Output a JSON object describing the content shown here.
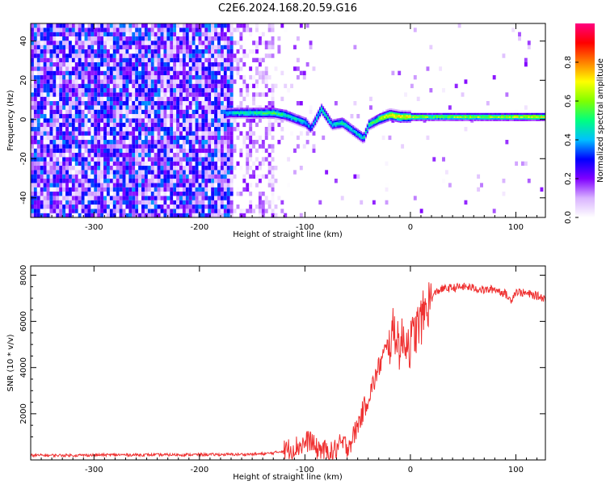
{
  "figure": {
    "title": "C2E6.2024.168.20.59.G16"
  },
  "chart_data": [
    {
      "type": "heatmap",
      "title": "C2E6.2024.168.20.59.G16",
      "xlabel": "Height of straight line (km)",
      "ylabel": "Frequency (Hz)",
      "xlim": [
        -360,
        128
      ],
      "ylim": [
        -50,
        49
      ],
      "xticks": [
        -300,
        -200,
        -100,
        0,
        100
      ],
      "yticks": [
        -40,
        -20,
        0,
        20,
        40
      ],
      "colorbar": {
        "label": "Normalized spectral amplitude",
        "range": [
          0.0,
          1.0
        ],
        "ticks": [
          0.0,
          0.2,
          0.4,
          0.6,
          0.8
        ],
        "colormap": [
          "#ffffff",
          "#d9b3ff",
          "#8000ff",
          "#0000ff",
          "#00c0ff",
          "#00ff80",
          "#80ff00",
          "#ffff00",
          "#ff8000",
          "#ff0000",
          "#ff0080"
        ]
      },
      "signal_track": {
        "x": [
          -360,
          -250,
          -170,
          -150,
          -130,
          -120,
          -110,
          -100,
          -95,
          -85,
          -75,
          -65,
          -55,
          -45,
          -40,
          -30,
          -20,
          -10,
          0,
          20,
          50,
          80,
          100,
          128
        ],
        "frequency": [
          0,
          0,
          3,
          3,
          3,
          2,
          0,
          -2,
          -5,
          5,
          -3,
          -2,
          -6,
          -10,
          -3,
          0,
          2,
          1,
          1,
          1,
          1,
          1,
          1,
          1
        ],
        "amplitude": [
          0.2,
          0.3,
          0.5,
          0.55,
          0.6,
          0.55,
          0.5,
          0.5,
          0.4,
          0.55,
          0.5,
          0.55,
          0.5,
          0.5,
          0.55,
          0.7,
          0.8,
          0.85,
          0.75,
          0.65,
          0.7,
          0.7,
          0.75,
          0.75
        ]
      },
      "grid": false
    },
    {
      "type": "line",
      "xlabel": "Height of straight line (km)",
      "ylabel": "SNR (10 * v/v)",
      "xlim": [
        -360,
        128
      ],
      "ylim": [
        0,
        8400
      ],
      "xticks": [
        -300,
        -200,
        -100,
        0,
        100
      ],
      "yticks": [
        2000,
        4000,
        6000,
        8000
      ],
      "color": "#ef3030",
      "series": [
        {
          "x": [
            -360,
            -320,
            -280,
            -240,
            -200,
            -160,
            -140,
            -130,
            -120,
            -110,
            -100,
            -95,
            -90,
            -85,
            -80,
            -75,
            -70,
            -65,
            -60,
            -55,
            -50,
            -45,
            -40,
            -35,
            -30,
            -25,
            -20,
            -15,
            -10,
            -5,
            0,
            5,
            10,
            15,
            20,
            25,
            30,
            40,
            50,
            60,
            70,
            80,
            90,
            95,
            100,
            110,
            120,
            128
          ],
          "y": [
            200,
            200,
            220,
            220,
            230,
            240,
            260,
            300,
            400,
            550,
            700,
            900,
            450,
            500,
            350,
            300,
            500,
            700,
            600,
            900,
            1500,
            2100,
            2700,
            3300,
            4000,
            4600,
            5000,
            5700,
            4900,
            5300,
            5000,
            5600,
            6000,
            6600,
            7000,
            7300,
            7400,
            7450,
            7500,
            7450,
            7350,
            7400,
            7200,
            6900,
            7300,
            7200,
            7100,
            7000
          ]
        }
      ],
      "grid": false
    }
  ]
}
